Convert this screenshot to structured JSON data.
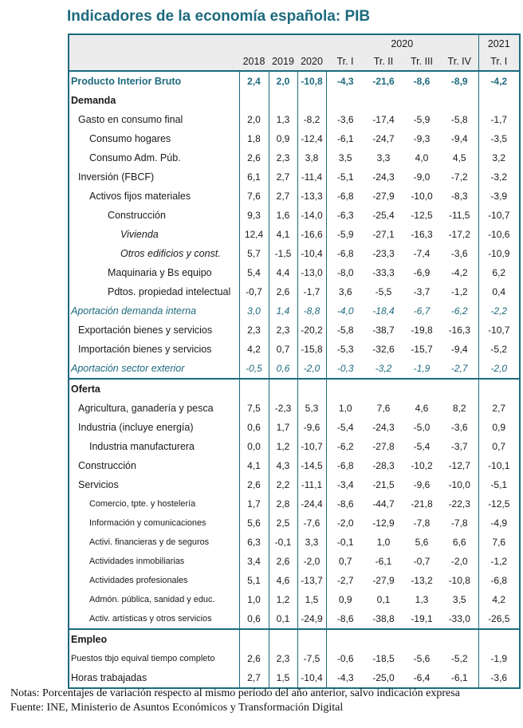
{
  "title": "Indicadores de la economía española: PIB",
  "colors": {
    "accent_teal": "#1d6a7d",
    "header_background": "#ececec"
  },
  "table": {
    "header": {
      "group_2020": "2020",
      "group_2021": "2021",
      "columns": [
        "2018",
        "2019",
        "2020",
        "Tr. I",
        "Tr. II",
        "Tr. III",
        "Tr. IV",
        "Tr. I"
      ]
    },
    "rows": [
      {
        "label": "Producto Interior Bruto",
        "style": "pib",
        "indent": 0,
        "values": [
          "2,4",
          "2,0",
          "-10,8",
          "-4,3",
          "-21,6",
          "-8,6",
          "-8,9",
          "-4,2"
        ]
      },
      {
        "label": "Demanda",
        "style": "section",
        "indent": 0,
        "values": [
          "",
          "",
          "",
          "",
          "",
          "",
          "",
          ""
        ]
      },
      {
        "label": "Gasto en consumo final",
        "style": "normal",
        "indent": 1,
        "values": [
          "2,0",
          "1,3",
          "-8,2",
          "-3,6",
          "-17,4",
          "-5,9",
          "-5,8",
          "-1,7"
        ]
      },
      {
        "label": "Consumo hogares",
        "style": "normal",
        "indent": 2,
        "values": [
          "1,8",
          "0,9",
          "-12,4",
          "-6,1",
          "-24,7",
          "-9,3",
          "-9,4",
          "-3,5"
        ]
      },
      {
        "label": "Consumo Adm. Púb.",
        "style": "normal",
        "indent": 2,
        "values": [
          "2,6",
          "2,3",
          "3,8",
          "3,5",
          "3,3",
          "4,0",
          "4,5",
          "3,2"
        ]
      },
      {
        "label": "Inversión (FBCF)",
        "style": "normal",
        "indent": 1,
        "values": [
          "6,1",
          "2,7",
          "-11,4",
          "-5,1",
          "-24,3",
          "-9,0",
          "-7,2",
          "-3,2"
        ]
      },
      {
        "label": "Activos fijos materiales",
        "style": "normal",
        "indent": 2,
        "values": [
          "7,6",
          "2,7",
          "-13,3",
          "-6,8",
          "-27,9",
          "-10,0",
          "-8,3",
          "-3,9"
        ]
      },
      {
        "label": "Construcción",
        "style": "normal",
        "indent": 3,
        "values": [
          "9,3",
          "1,6",
          "-14,0",
          "-6,3",
          "-25,4",
          "-12,5",
          "-11,5",
          "-10,7"
        ]
      },
      {
        "label": "Vivienda",
        "style": "ital",
        "indent": 4,
        "values": [
          "12,4",
          "4,1",
          "-16,6",
          "-5,9",
          "-27,1",
          "-16,3",
          "-17,2",
          "-10,6"
        ]
      },
      {
        "label": "Otros edificios y const.",
        "style": "ital",
        "indent": 4,
        "values": [
          "5,7",
          "-1,5",
          "-10,4",
          "-6,8",
          "-23,3",
          "-7,4",
          "-3,6",
          "-10,9"
        ]
      },
      {
        "label": "Maquinaria y Bs equipo",
        "style": "normal",
        "indent": 3,
        "values": [
          "5,4",
          "4,4",
          "-13,0",
          "-8,0",
          "-33,3",
          "-6,9",
          "-4,2",
          "6,2"
        ]
      },
      {
        "label": "Pdtos. propiedad intelectual",
        "style": "normal",
        "indent": 3,
        "values": [
          "-0,7",
          "2,6",
          "-1,7",
          "3,6",
          "-5,5",
          "-3,7",
          "-1,2",
          "0,4"
        ]
      },
      {
        "label": "Aportación demanda interna",
        "style": "teal",
        "indent": 0,
        "values": [
          "3,0",
          "1,4",
          "-8,8",
          "-4,0",
          "-18,4",
          "-6,7",
          "-6,2",
          "-2,2"
        ]
      },
      {
        "label": "Exportación bienes y servicios",
        "style": "normal",
        "indent": 1,
        "values": [
          "2,3",
          "2,3",
          "-20,2",
          "-5,8",
          "-38,7",
          "-19,8",
          "-16,3",
          "-10,7"
        ]
      },
      {
        "label": "Importación bienes y servicios",
        "style": "normal",
        "indent": 1,
        "values": [
          "4,2",
          "0,7",
          "-15,8",
          "-5,3",
          "-32,6",
          "-15,7",
          "-9,4",
          "-5,2"
        ]
      },
      {
        "label": "Aportación sector exterior",
        "style": "teal",
        "indent": 0,
        "values": [
          "-0,5",
          "0,6",
          "-2,0",
          "-0,3",
          "-3,2",
          "-1,9",
          "-2,7",
          "-2,0"
        ]
      },
      {
        "label": "Oferta",
        "style": "section",
        "indent": 0,
        "divider_above": true,
        "values": [
          "",
          "",
          "",
          "",
          "",
          "",
          "",
          ""
        ]
      },
      {
        "label": "Agricultura, ganadería y pesca",
        "style": "normal",
        "indent": 1,
        "values": [
          "7,5",
          "-2,3",
          "5,3",
          "1,0",
          "7,6",
          "4,6",
          "8,2",
          "2,7"
        ]
      },
      {
        "label": "Industria (incluye energía)",
        "style": "normal",
        "indent": 1,
        "values": [
          "0,6",
          "1,7",
          "-9,6",
          "-5,4",
          "-24,3",
          "-5,0",
          "-3,6",
          "0,9"
        ]
      },
      {
        "label": "Industria manufacturera",
        "style": "normal",
        "indent": 2,
        "values": [
          "0,0",
          "1,2",
          "-10,7",
          "-6,2",
          "-27,8",
          "-5,4",
          "-3,7",
          "0,7"
        ]
      },
      {
        "label": "Construcción",
        "style": "normal",
        "indent": 1,
        "values": [
          "4,1",
          "4,3",
          "-14,5",
          "-6,8",
          "-28,3",
          "-10,2",
          "-12,7",
          "-10,1"
        ]
      },
      {
        "label": "Servicios",
        "style": "normal",
        "indent": 1,
        "values": [
          "2,6",
          "2,2",
          "-11,1",
          "-3,4",
          "-21,5",
          "-9,6",
          "-10,0",
          "-5,1"
        ]
      },
      {
        "label": "Comercio, tpte. y hostelería",
        "style": "small",
        "indent": 2,
        "values": [
          "1,7",
          "2,8",
          "-24,4",
          "-8,6",
          "-44,7",
          "-21,8",
          "-22,3",
          "-12,5"
        ]
      },
      {
        "label": "Información y comunicaciones",
        "style": "small",
        "indent": 2,
        "values": [
          "5,6",
          "2,5",
          "-7,6",
          "-2,0",
          "-12,9",
          "-7,8",
          "-7,8",
          "-4,9"
        ]
      },
      {
        "label": "Activi. financieras y de seguros",
        "style": "small",
        "indent": 2,
        "values": [
          "6,3",
          "-0,1",
          "3,3",
          "-0,1",
          "1,0",
          "5,6",
          "6,6",
          "7,6"
        ]
      },
      {
        "label": "Actividades inmobiliarias",
        "style": "small",
        "indent": 2,
        "values": [
          "3,4",
          "2,6",
          "-2,0",
          "0,7",
          "-6,1",
          "-0,7",
          "-2,0",
          "-1,2"
        ]
      },
      {
        "label": "Actividades profesionales",
        "style": "small",
        "indent": 2,
        "values": [
          "5,1",
          "4,6",
          "-13,7",
          "-2,7",
          "-27,9",
          "-13,2",
          "-10,8",
          "-6,8"
        ]
      },
      {
        "label": "Admón. pública, sanidad y educ.",
        "style": "small",
        "indent": 2,
        "values": [
          "1,0",
          "1,2",
          "1,5",
          "0,9",
          "0,1",
          "1,3",
          "3,5",
          "4,2"
        ]
      },
      {
        "label": "Activ. artísticas y otros servicios",
        "style": "small",
        "indent": 2,
        "values": [
          "0,6",
          "0,1",
          "-24,9",
          "-8,6",
          "-38,8",
          "-19,1",
          "-33,0",
          "-26,5"
        ]
      },
      {
        "label": "Empleo",
        "style": "section",
        "indent": 0,
        "divider_above": true,
        "values": [
          "",
          "",
          "",
          "",
          "",
          "",
          "",
          ""
        ]
      },
      {
        "label": "Puestos tbjo equival tiempo completo",
        "style": "small",
        "indent": 0,
        "values": [
          "2,6",
          "2,3",
          "-7,5",
          "-0,6",
          "-18,5",
          "-5,6",
          "-5,2",
          "-1,9"
        ]
      },
      {
        "label": "Horas trabajadas",
        "style": "normal",
        "indent": 0,
        "values": [
          "2,7",
          "1,5",
          "-10,4",
          "-4,3",
          "-25,0",
          "-6,4",
          "-6,1",
          "-3,6"
        ]
      }
    ]
  },
  "notes": {
    "line1": "Notas: Porcentajes de variación respecto al mismo período del año anterior, salvo indicación expresa",
    "line2": "Fuente: INE, Ministerio de Asuntos Económicos y Transformación Digital"
  }
}
